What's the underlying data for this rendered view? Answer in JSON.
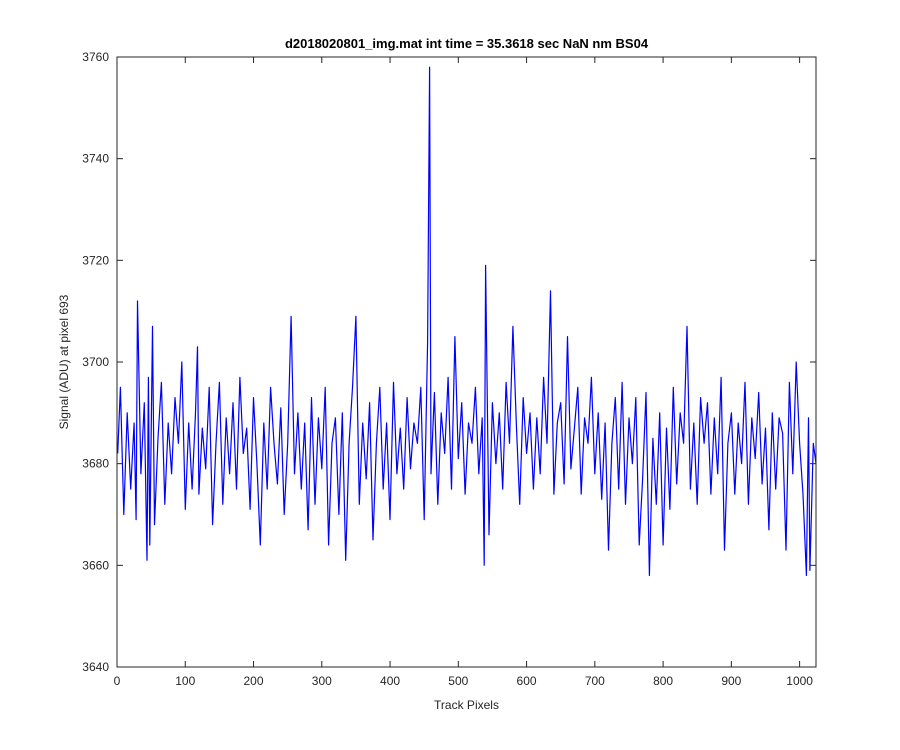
{
  "chart_data": {
    "type": "line",
    "title": "d2018020801_img.mat int time = 35.3618 sec  NaN nm BS04",
    "xlabel": "Track Pixels",
    "ylabel": "Signal (ADU) at pixel 693",
    "xlim": [
      0,
      1024
    ],
    "ylim": [
      3640,
      3760
    ],
    "xticks": [
      0,
      100,
      200,
      300,
      400,
      500,
      600,
      700,
      800,
      900,
      1000
    ],
    "yticks": [
      3640,
      3660,
      3680,
      3700,
      3720,
      3740,
      3760
    ],
    "grid": false,
    "series": [
      {
        "color": "#0000ff",
        "x": [
          1,
          5,
          10,
          15,
          20,
          25,
          28,
          30,
          35,
          40,
          44,
          46,
          48,
          52,
          55,
          60,
          65,
          70,
          75,
          80,
          85,
          90,
          95,
          100,
          105,
          110,
          115,
          118,
          120,
          125,
          130,
          135,
          140,
          145,
          150,
          155,
          160,
          165,
          170,
          175,
          180,
          185,
          190,
          195,
          200,
          205,
          210,
          215,
          220,
          225,
          230,
          235,
          240,
          245,
          250,
          255,
          260,
          265,
          270,
          275,
          280,
          285,
          290,
          295,
          300,
          305,
          310,
          315,
          320,
          325,
          330,
          335,
          340,
          345,
          350,
          355,
          360,
          365,
          370,
          375,
          380,
          385,
          390,
          395,
          400,
          405,
          410,
          415,
          420,
          425,
          430,
          435,
          440,
          445,
          450,
          455,
          458,
          460,
          465,
          470,
          475,
          480,
          485,
          490,
          495,
          500,
          505,
          510,
          515,
          520,
          525,
          530,
          535,
          538,
          540,
          545,
          550,
          555,
          560,
          565,
          570,
          575,
          580,
          585,
          590,
          595,
          600,
          605,
          610,
          615,
          620,
          625,
          630,
          635,
          640,
          645,
          650,
          655,
          660,
          665,
          670,
          675,
          680,
          685,
          690,
          695,
          700,
          705,
          710,
          715,
          720,
          725,
          730,
          735,
          740,
          745,
          750,
          755,
          760,
          765,
          770,
          775,
          780,
          785,
          790,
          795,
          800,
          805,
          810,
          815,
          820,
          825,
          830,
          835,
          840,
          845,
          850,
          855,
          860,
          865,
          870,
          875,
          880,
          885,
          890,
          895,
          900,
          905,
          910,
          915,
          920,
          925,
          930,
          935,
          940,
          945,
          950,
          955,
          960,
          965,
          970,
          975,
          980,
          985,
          990,
          995,
          1000,
          1005,
          1010,
          1013,
          1015,
          1020,
          1024
        ],
        "y": [
          3682,
          3695,
          3670,
          3690,
          3675,
          3688,
          3669,
          3712,
          3678,
          3692,
          3661,
          3697,
          3664,
          3707,
          3668,
          3685,
          3696,
          3672,
          3688,
          3678,
          3693,
          3684,
          3700,
          3671,
          3688,
          3675,
          3690,
          3703,
          3674,
          3687,
          3679,
          3695,
          3668,
          3684,
          3696,
          3672,
          3689,
          3678,
          3692,
          3675,
          3697,
          3682,
          3687,
          3671,
          3693,
          3680,
          3664,
          3688,
          3675,
          3695,
          3684,
          3676,
          3691,
          3670,
          3684,
          3709,
          3678,
          3690,
          3675,
          3688,
          3667,
          3693,
          3672,
          3689,
          3679,
          3695,
          3664,
          3684,
          3689,
          3670,
          3690,
          3661,
          3684,
          3695,
          3709,
          3672,
          3688,
          3677,
          3692,
          3665,
          3684,
          3695,
          3675,
          3688,
          3669,
          3696,
          3678,
          3687,
          3675,
          3693,
          3679,
          3688,
          3684,
          3695,
          3669,
          3704,
          3758,
          3678,
          3694,
          3672,
          3690,
          3682,
          3697,
          3675,
          3705,
          3681,
          3692,
          3674,
          3688,
          3684,
          3695,
          3678,
          3689,
          3660,
          3719,
          3666,
          3692,
          3680,
          3690,
          3675,
          3696,
          3684,
          3707,
          3688,
          3672,
          3693,
          3682,
          3690,
          3675,
          3689,
          3678,
          3697,
          3684,
          3714,
          3674,
          3688,
          3692,
          3676,
          3705,
          3679,
          3687,
          3695,
          3674,
          3689,
          3684,
          3697,
          3678,
          3690,
          3673,
          3688,
          3663,
          3684,
          3693,
          3675,
          3696,
          3672,
          3689,
          3680,
          3693,
          3664,
          3677,
          3694,
          3658,
          3685,
          3672,
          3690,
          3664,
          3687,
          3671,
          3695,
          3676,
          3690,
          3684,
          3707,
          3675,
          3688,
          3672,
          3693,
          3684,
          3692,
          3674,
          3689,
          3678,
          3697,
          3663,
          3684,
          3690,
          3674,
          3688,
          3680,
          3696,
          3672,
          3689,
          3681,
          3694,
          3676,
          3687,
          3667,
          3690,
          3675,
          3689,
          3686,
          3663,
          3696,
          3678,
          3700,
          3684,
          3674,
          3658,
          3689,
          3659,
          3684,
          3680
        ]
      }
    ]
  }
}
